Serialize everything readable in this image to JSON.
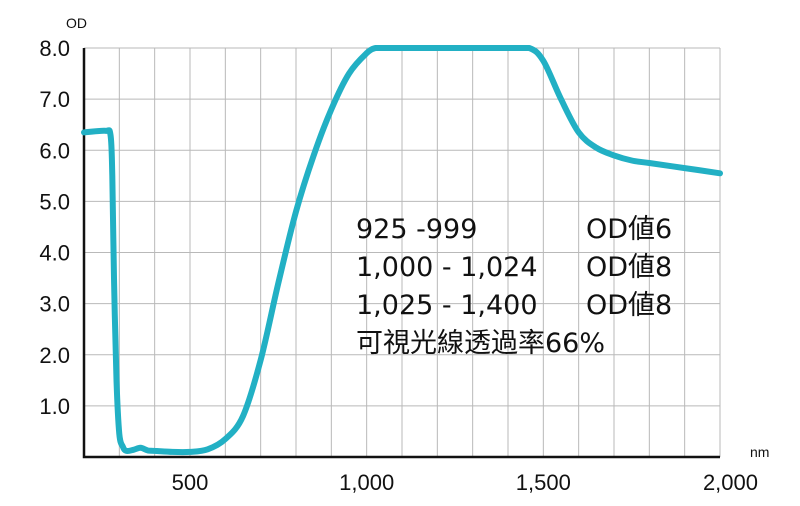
{
  "chart_data": {
    "type": "line",
    "xlabel": "nm",
    "ylabel": "OD",
    "xlim": [
      200,
      2000
    ],
    "ylim": [
      0,
      8
    ],
    "x_ticks": [
      500,
      1000,
      1500,
      2000
    ],
    "x_tick_labels": [
      "500",
      "1,000",
      "1,500",
      "2,000"
    ],
    "y_ticks": [
      1,
      2,
      3,
      4,
      5,
      6,
      7,
      8
    ],
    "y_tick_labels": [
      "1.0",
      "2.0",
      "3.0",
      "4.0",
      "5.0",
      "6.0",
      "7.0",
      "8.0"
    ],
    "grid": true,
    "legend": "none",
    "color": "#22b0c4",
    "series": [
      {
        "x": [
          200,
          260,
          275,
          280,
          285,
          292,
          300,
          310,
          320,
          340,
          360,
          380,
          400,
          450,
          500,
          550,
          600,
          650,
          700,
          750,
          800,
          850,
          900,
          950,
          1000,
          1025,
          1050,
          1100,
          1200,
          1300,
          1400,
          1460,
          1500,
          1550,
          1600,
          1650,
          1700,
          1750,
          1800,
          1900,
          2000
        ],
        "y": [
          6.35,
          6.38,
          6.3,
          5.5,
          3.5,
          1.5,
          0.45,
          0.2,
          0.12,
          0.14,
          0.18,
          0.13,
          0.12,
          0.1,
          0.1,
          0.15,
          0.35,
          0.8,
          1.9,
          3.4,
          4.8,
          5.9,
          6.8,
          7.5,
          7.9,
          8.0,
          8.0,
          8.0,
          8.0,
          8.0,
          8.0,
          8.0,
          7.75,
          7.0,
          6.35,
          6.05,
          5.9,
          5.8,
          5.75,
          5.65,
          5.55
        ]
      }
    ]
  },
  "annotations": [
    {
      "range": "925 -999",
      "od": "OD値6"
    },
    {
      "range": "1,000 - 1,024",
      "od": "OD値8"
    },
    {
      "range": "1,025 - 1,400",
      "od": "OD値8"
    }
  ],
  "transmittance_text": "可視光線透過率66%"
}
